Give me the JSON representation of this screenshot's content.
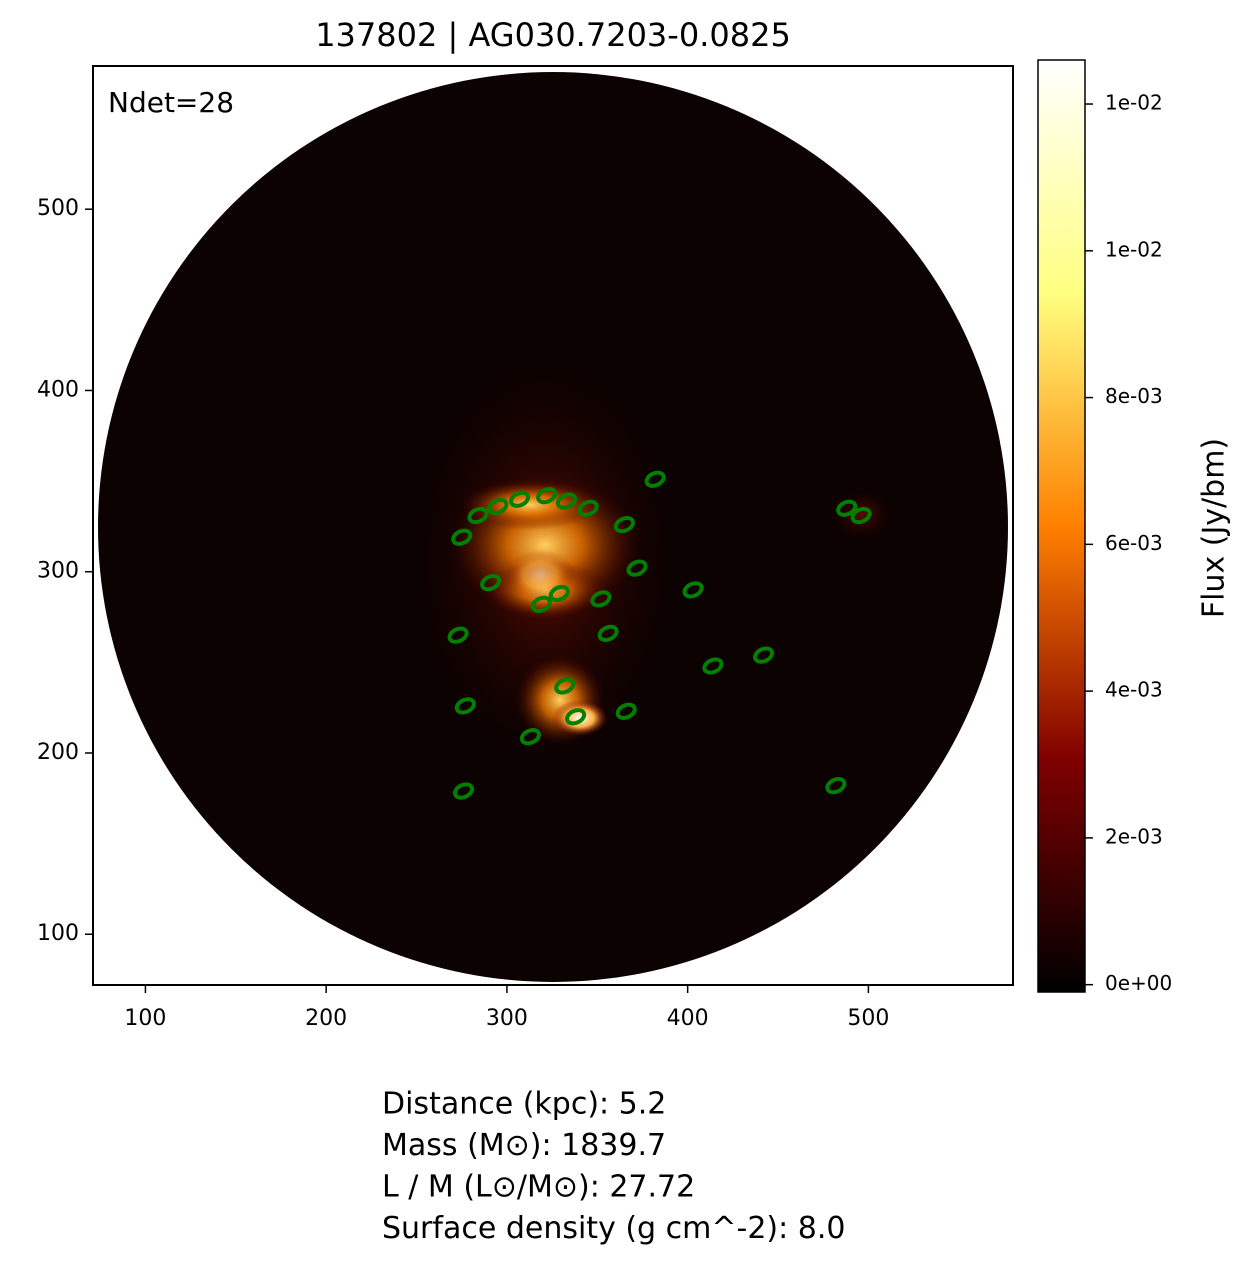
{
  "chart_data": {
    "type": "scatter",
    "title": "137802 | AG030.7203-0.0825",
    "annotation": "Ndet=28",
    "x": [
      382,
      284,
      295,
      307,
      322,
      333,
      345,
      275,
      365,
      488,
      496,
      291,
      372,
      329,
      319,
      352,
      403,
      356,
      273,
      414,
      442,
      332,
      277,
      366,
      338,
      313,
      276,
      482
    ],
    "y": [
      351,
      331,
      336,
      340,
      342,
      339,
      335,
      319,
      326,
      335,
      331,
      294,
      302,
      288,
      282,
      285,
      290,
      266,
      265,
      248,
      254,
      237,
      226,
      223,
      220,
      209,
      179,
      182
    ],
    "color": "#008000",
    "xlim": [
      71,
      580
    ],
    "ylim": [
      72,
      579
    ],
    "xticks": [
      100,
      200,
      300,
      400,
      500
    ],
    "yticks": [
      100,
      200,
      300,
      400,
      500
    ],
    "colorbar": {
      "label": "Flux (Jy/bm)",
      "clim": [
        -0.0001,
        0.0126
      ],
      "ticks": [
        {
          "value": 0,
          "label": "0e+00"
        },
        {
          "value": 0.002,
          "label": "2e-03"
        },
        {
          "value": 0.004,
          "label": "4e-03"
        },
        {
          "value": 0.006,
          "label": "6e-03"
        },
        {
          "value": 0.008,
          "label": "8e-03"
        },
        {
          "value": 0.01,
          "label": "1e-02"
        },
        {
          "value": 0.012,
          "label": "1e-02"
        }
      ]
    },
    "info": [
      "Distance (kpc): 5.2",
      "Mass (M⊙): 1839.7",
      "L / M (L⊙/M⊙): 27.72",
      "Surface density (g cm^-2): 8.0"
    ]
  }
}
